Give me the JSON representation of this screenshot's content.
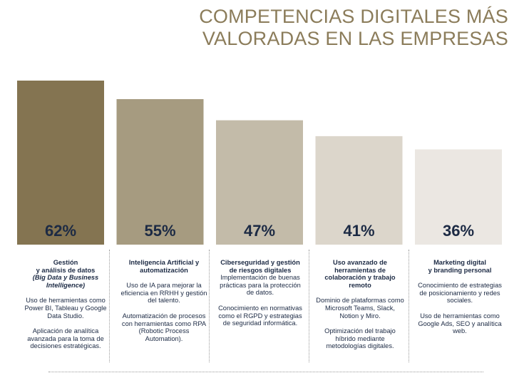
{
  "header": {
    "title_line1": "COMPETENCIAS DIGITALES MÁS",
    "title_line2": "VALORADAS EN LAS EMPRESAS"
  },
  "chart_data": {
    "type": "bar",
    "title": "COMPETENCIAS DIGITALES MÁS VALORADAS EN LAS EMPRESAS",
    "categories": [
      "Gestión y análisis de datos (Big Data y Business Intelligence)",
      "Inteligencia Artificial y automatización",
      "Ciberseguridad y gestión de riesgos digitales",
      "Uso avanzado de herramientas de colaboración y trabajo remoto",
      "Marketing digital y branding personal"
    ],
    "values": [
      62,
      55,
      47,
      41,
      36
    ],
    "value_labels": [
      "62%",
      "55%",
      "47%",
      "41%",
      "36%"
    ],
    "colors": [
      "#847451",
      "#a69b80",
      "#c3bba9",
      "#dcd6cb",
      "#ebe7e2"
    ],
    "ylim": [
      0,
      62
    ],
    "grid": false,
    "legend": "none"
  },
  "columns": [
    {
      "head1": "Gestión",
      "head2": "y análisis de datos",
      "head3": "(Big Data y Business",
      "head4": "Intelligence)",
      "p1": "Uso de herramientas como Power BI, Tableau y Google Data Studio.",
      "p2": "Aplicación de analítica avanzada para la toma de decisiones estratégicas."
    },
    {
      "head1": "Inteligencia Artificial y",
      "head2": "automatización",
      "p1": "Uso de IA para mejorar la eficiencia en RRHH y gestión del talento.",
      "p2": "Automatización de procesos con herramientas como RPA (Robotic Process Automation)."
    },
    {
      "head1": "Ciberseguridad y gestión",
      "head2": "de riesgos digitales",
      "p1": "Implementación de buenas prácticas para la protección de datos.",
      "p2": "Conocimiento en normativas como el RGPD y estrategias de seguridad informática."
    },
    {
      "head1": "Uso avanzado de",
      "head2": "herramientas de",
      "head3": "colaboración y trabajo",
      "head4": "remoto",
      "p1": "Dominio de plataformas como Microsoft Teams, Slack, Notion y Miro.",
      "p2": "Optimización del trabajo híbrido mediante metodologías digitales."
    },
    {
      "head1": "Marketing digital",
      "head2": "y branding personal",
      "p1": "Conocimiento de estrategias de posicionamiento y redes sociales.",
      "p2": "Uso de herramientas como Google Ads, SEO y analítica web."
    }
  ]
}
